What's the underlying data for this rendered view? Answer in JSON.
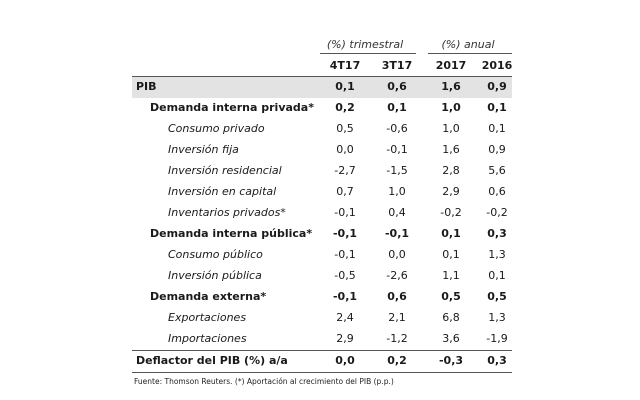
{
  "header": {
    "group_trimestral": "(%) trimestral",
    "group_anual": "(%) anual",
    "columns": [
      "4T17",
      "3T17",
      "2017",
      "2016"
    ]
  },
  "rows": [
    {
      "label": "PIB",
      "values": [
        "0,1",
        "0,6",
        "1,6",
        "0,9"
      ]
    },
    {
      "label": "Demanda interna privada*",
      "values": [
        "0,2",
        "0,1",
        "1,0",
        "0,1"
      ]
    },
    {
      "label": "Consumo privado",
      "values": [
        "0,5",
        "-0,6",
        "1,0",
        "0,1"
      ]
    },
    {
      "label": "Inversión fija",
      "values": [
        "0,0",
        "-0,1",
        "1,6",
        "0,9"
      ]
    },
    {
      "label": "Inversión residencial",
      "values": [
        "-2,7",
        "-1,5",
        "2,8",
        "5,6"
      ]
    },
    {
      "label": "Inversión en capital",
      "values": [
        "0,7",
        "1,0",
        "2,9",
        "0,6"
      ]
    },
    {
      "label": "Inventarios privados*",
      "values": [
        "-0,1",
        "0,4",
        "-0,2",
        "-0,2"
      ]
    },
    {
      "label": "Demanda interna pública*",
      "values": [
        "-0,1",
        "-0,1",
        "0,1",
        "0,3"
      ]
    },
    {
      "label": "Consumo público",
      "values": [
        "-0,1",
        "0,0",
        "0,1",
        "1,3"
      ]
    },
    {
      "label": "Inversión pública",
      "values": [
        "-0,5",
        "-2,6",
        "1,1",
        "0,1"
      ]
    },
    {
      "label": "Demanda externa*",
      "values": [
        "-0,1",
        "0,6",
        "0,5",
        "0,5"
      ]
    },
    {
      "label": "Exportaciones",
      "values": [
        "2,4",
        "2,1",
        "6,8",
        "1,3"
      ]
    },
    {
      "label": "Importaciones",
      "values": [
        "2,9",
        "-1,2",
        "3,6",
        "-1,9"
      ]
    },
    {
      "label": "Deflactor del PIB (%) a/a",
      "values": [
        "0,0",
        "0,2",
        "-0,3",
        "0,3"
      ]
    }
  ],
  "footnote": "Fuente: Thomson Reuters. (*) Aportación al crecimiento del PIB (p.p.)"
}
